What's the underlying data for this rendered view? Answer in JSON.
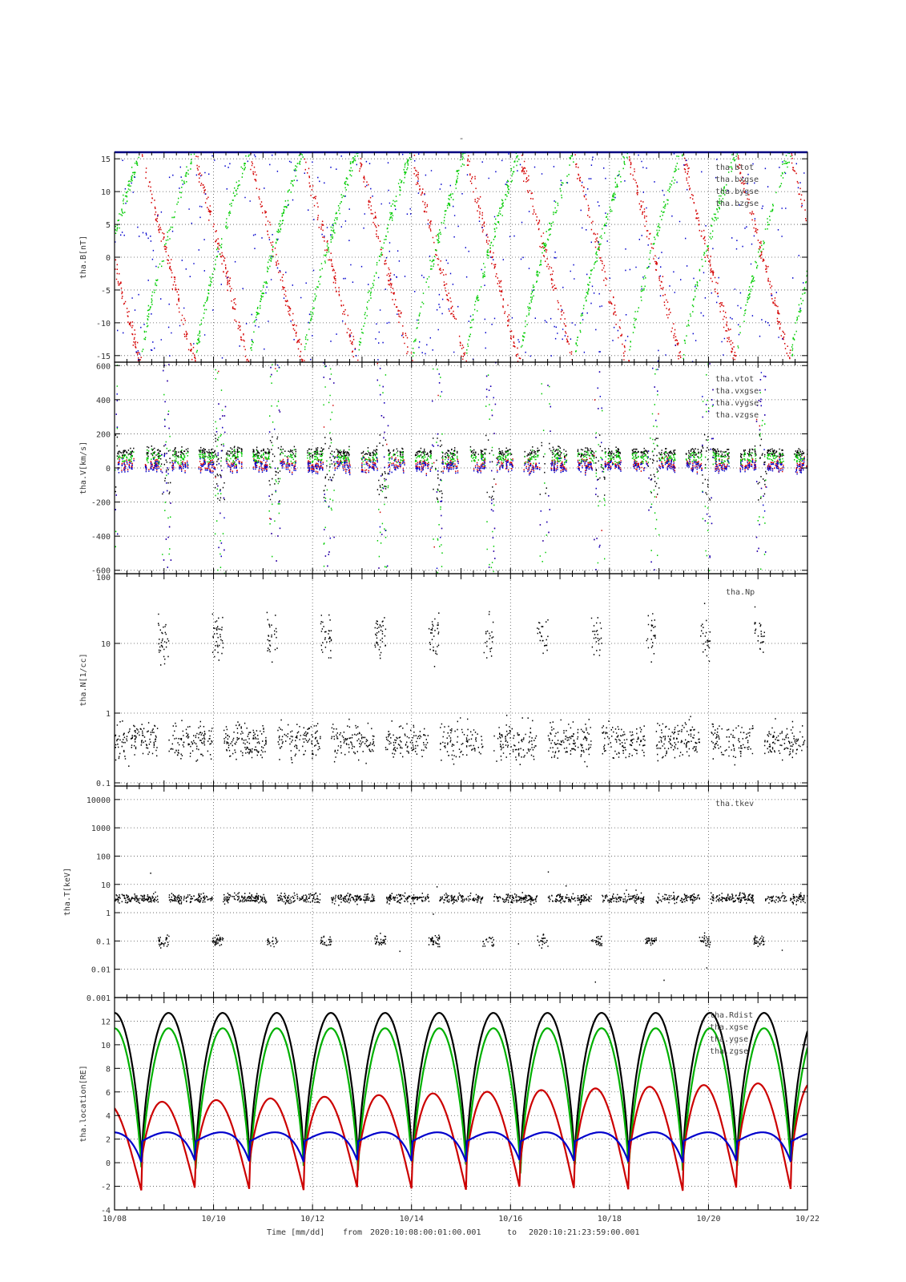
{
  "page": {
    "title": "-",
    "xlabel_prefix": "Time [mm/dd]",
    "from_label": "from",
    "from_time": "2020:10:08:00:01:00.001",
    "to_label": "to",
    "to_time": "2020:10:21:23:59:00.001"
  },
  "chart_data": [
    {
      "type": "scatter",
      "ylabel": "tha.B[nT]",
      "ylim": [
        -16,
        16
      ],
      "yticks": [
        "15",
        "10",
        "5",
        "0",
        "-5",
        "-10",
        "-15"
      ],
      "ytick_values": [
        15,
        10,
        5,
        0,
        -5,
        -10,
        -15
      ],
      "series": [
        {
          "name": "tha.btot",
          "color": "#000000"
        },
        {
          "name": "tha.bxgse",
          "color": "#d40000"
        },
        {
          "name": "tha.bygse",
          "color": "#00cc00"
        },
        {
          "name": "tha.bzgse",
          "color": "#0000cc"
        }
      ]
    },
    {
      "type": "scatter",
      "ylabel": "tha.V[km/s]",
      "ylim": [
        -620,
        620
      ],
      "yticks": [
        "600",
        "400",
        "200",
        "0",
        "-200",
        "-400",
        "-600"
      ],
      "ytick_values": [
        600,
        400,
        200,
        0,
        -200,
        -400,
        -600
      ],
      "series": [
        {
          "name": "tha.vtot",
          "color": "#000000"
        },
        {
          "name": "tha.vxgse",
          "color": "#d40000"
        },
        {
          "name": "tha.vygse",
          "color": "#00cc00"
        },
        {
          "name": "tha.vzgse",
          "color": "#0000cc"
        }
      ]
    },
    {
      "type": "scatter",
      "scale": "log",
      "ylabel": "tha.N[1/cc]",
      "ylim": [
        0.09,
        100
      ],
      "yticks": [
        "100",
        "10",
        "1",
        "0.1"
      ],
      "ytick_values": [
        100,
        10,
        1,
        0.1
      ],
      "series": [
        {
          "name": "tha.Np",
          "color": "#000000"
        }
      ]
    },
    {
      "type": "scatter",
      "scale": "log",
      "ylabel": "tha.T[keV]",
      "ylim": [
        0.001,
        30000
      ],
      "yticks": [
        "10000",
        "1000",
        "100",
        "10",
        "1",
        "0.1",
        "0.01",
        "0.001"
      ],
      "ytick_values": [
        10000,
        1000,
        100,
        10,
        1,
        0.1,
        0.01,
        0.001
      ],
      "series": [
        {
          "name": "tha.tkev",
          "color": "#000000"
        }
      ]
    },
    {
      "type": "line",
      "ylabel": "tha.location[RE]",
      "ylim": [
        -4,
        14
      ],
      "yticks": [
        "12",
        "10",
        "8",
        "6",
        "4",
        "2",
        "0",
        "-2",
        "-4"
      ],
      "ytick_values": [
        12,
        10,
        8,
        6,
        4,
        2,
        0,
        -2,
        -4
      ],
      "series": [
        {
          "name": "tha.Rdist",
          "color": "#000000"
        },
        {
          "name": "tha.xgse",
          "color": "#00b000"
        },
        {
          "name": "tha.ygse",
          "color": "#cc0000"
        },
        {
          "name": "tha.zgse",
          "color": "#0000cc"
        }
      ]
    }
  ],
  "x_axis": {
    "range_days": [
      0,
      14
    ],
    "ticks": [
      {
        "label": "10/08",
        "day": 0
      },
      {
        "label": "10/10",
        "day": 2
      },
      {
        "label": "10/12",
        "day": 4
      },
      {
        "label": "10/14",
        "day": 6
      },
      {
        "label": "10/16",
        "day": 8
      },
      {
        "label": "10/18",
        "day": 10
      },
      {
        "label": "10/20",
        "day": 12
      },
      {
        "label": "10/22",
        "day": 14
      }
    ]
  }
}
